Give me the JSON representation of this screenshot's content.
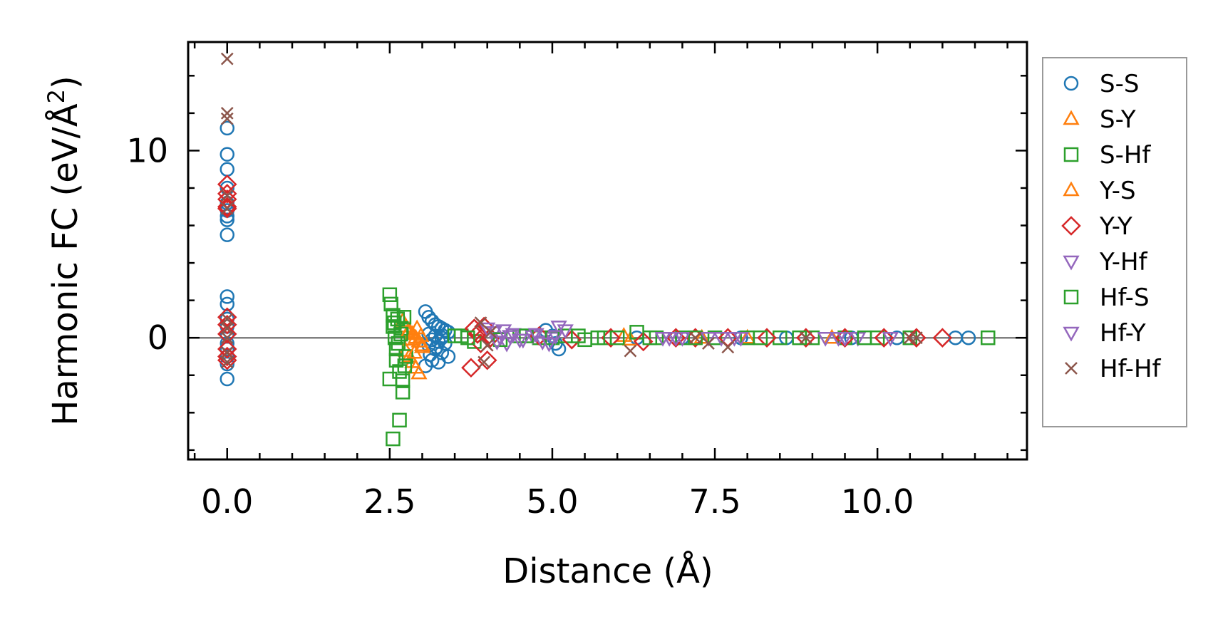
{
  "chart_data": {
    "type": "scatter",
    "title": "",
    "xlabel": "Distance (Å)",
    "ylabel_main": "Harmonic FC (eV/Å",
    "ylabel_sup": "2",
    "ylabel_close": ")",
    "xlim": [
      -0.6,
      12.3
    ],
    "ylim": [
      -6.5,
      15.8
    ],
    "x_ticks": [
      0.0,
      2.5,
      5.0,
      7.5,
      10.0
    ],
    "x_tick_labels": [
      "0.0",
      "2.5",
      "5.0",
      "7.5",
      "10.0"
    ],
    "y_ticks": [
      0,
      10
    ],
    "y_tick_labels": [
      "0",
      "10"
    ],
    "reference_line_y": 0,
    "legend_position": "outside-right",
    "series": [
      {
        "name": "S-S",
        "marker": "circle",
        "color": "#1f77b4",
        "x": [
          0,
          0,
          0,
          0,
          0,
          0,
          0,
          0,
          0,
          0,
          0,
          0,
          0,
          0,
          0,
          0,
          0,
          0,
          0,
          3.05,
          3.1,
          3.15,
          3.2,
          3.25,
          3.3,
          3.35,
          3.4,
          3.1,
          3.2,
          3.3,
          3.15,
          3.25,
          3.35,
          3.1,
          3.2,
          3.3,
          3.4,
          3.15,
          3.25,
          3.05,
          3.12,
          3.22,
          3.32,
          4.9,
          5.0,
          5.05,
          5.1,
          6.3,
          7.0,
          7.9,
          8.6,
          9.6,
          10.3,
          11.2,
          11.4
        ],
        "y": [
          11.2,
          9.8,
          9.0,
          8.0,
          7.2,
          6.8,
          6.5,
          6.3,
          5.5,
          2.2,
          1.8,
          1.0,
          0.6,
          0.2,
          -0.3,
          -0.6,
          -1.0,
          -1.4,
          -2.2,
          1.4,
          1.1,
          0.9,
          0.7,
          0.6,
          0.5,
          0.4,
          0.3,
          0.2,
          0.1,
          0.0,
          -0.1,
          -0.2,
          -0.3,
          -0.4,
          -0.6,
          -0.8,
          -1.0,
          -1.2,
          -1.3,
          -1.5,
          -0.9,
          -0.5,
          0.1,
          0.4,
          0.1,
          -0.3,
          -0.6,
          0.0,
          0.0,
          0.0,
          0.0,
          0.0,
          0.0,
          0.0,
          0.0
        ]
      },
      {
        "name": "S-Y",
        "marker": "triangle-up",
        "color": "#ff7f0e",
        "x": [
          2.7,
          2.75,
          2.8,
          2.85,
          2.9,
          2.95,
          3.0,
          2.75,
          2.8,
          2.85,
          2.9,
          2.95,
          3.0,
          6.1,
          6.2,
          7.3,
          8.0,
          9.3
        ],
        "y": [
          0.9,
          0.6,
          0.4,
          0.2,
          0.0,
          -0.2,
          -0.4,
          -0.7,
          -1.0,
          -1.3,
          -1.6,
          -1.9,
          -0.5,
          0.1,
          -0.1,
          0.0,
          0.0,
          0.0
        ]
      },
      {
        "name": "S-Hf",
        "marker": "square",
        "color": "#2ca02c",
        "x": [
          2.5,
          2.5,
          2.52,
          2.55,
          2.55,
          2.55,
          2.58,
          2.6,
          2.6,
          2.62,
          2.65,
          2.65,
          2.68,
          2.7,
          2.7,
          2.72,
          2.75,
          3.6,
          3.8,
          4.5,
          4.8,
          5.2,
          5.5,
          5.8,
          6.3,
          6.6,
          7.0,
          7.5,
          8.0,
          8.5,
          9.0,
          9.5,
          10.0,
          10.5,
          11.7
        ],
        "y": [
          2.3,
          -2.2,
          1.8,
          1.2,
          0.6,
          -5.4,
          0.0,
          -0.6,
          -1.2,
          1.0,
          -1.8,
          -4.4,
          0.5,
          -2.9,
          -2.3,
          1.1,
          -1.0,
          0.1,
          -0.2,
          0.1,
          0.0,
          0.1,
          -0.1,
          0.0,
          0.3,
          0.0,
          0.0,
          0.0,
          0.0,
          0.0,
          0.0,
          0.0,
          0.0,
          0.0,
          0.0
        ]
      },
      {
        "name": "Y-S",
        "marker": "triangle-up",
        "color": "#ff7f0e",
        "x": [
          2.78,
          2.82,
          2.88,
          2.92,
          2.98
        ],
        "y": [
          0.3,
          -0.1,
          -0.8,
          0.5,
          0.1
        ]
      },
      {
        "name": "Y-Y",
        "marker": "diamond",
        "color": "#d62728",
        "x": [
          0,
          0,
          0,
          0,
          0,
          0,
          0,
          0,
          0,
          0,
          0,
          3.75,
          3.8,
          3.85,
          3.9,
          3.95,
          4.0,
          4.05,
          4.8,
          5.3,
          5.9,
          6.4,
          6.9,
          7.2,
          7.7,
          8.3,
          8.9,
          9.5,
          10.1,
          10.6,
          11.0
        ],
        "y": [
          8.2,
          7.7,
          7.4,
          7.0,
          6.9,
          1.1,
          0.7,
          0.2,
          -0.6,
          -1.0,
          -1.2,
          -1.6,
          0.5,
          0.2,
          -0.3,
          0.6,
          -1.2,
          0.0,
          0.1,
          -0.1,
          0.0,
          -0.2,
          0.0,
          0.0,
          0.0,
          0.0,
          0.0,
          0.0,
          0.0,
          0.0,
          0.0
        ]
      },
      {
        "name": "Y-Hf",
        "marker": "triangle-down",
        "color": "#9467bd",
        "x": [
          4.0,
          4.1,
          4.2,
          4.3,
          4.4,
          4.5,
          4.7,
          4.85,
          5.0,
          5.1,
          5.2,
          6.8,
          6.9,
          7.6,
          7.9,
          9.4,
          9.7,
          10.2
        ],
        "y": [
          0.5,
          0.3,
          0.0,
          -0.3,
          0.2,
          -0.1,
          0.1,
          -0.2,
          0.0,
          0.6,
          0.4,
          0.0,
          0.0,
          0.0,
          0.0,
          0.0,
          0.0,
          0.0
        ]
      },
      {
        "name": "Hf-S",
        "marker": "square",
        "color": "#2ca02c",
        "x": [
          2.57,
          2.63,
          2.67,
          2.73,
          3.5,
          3.7,
          4.2,
          4.6,
          5.0,
          5.4,
          5.7,
          6.0,
          6.5,
          7.2,
          8.2,
          8.8,
          9.8
        ],
        "y": [
          0.8,
          -0.3,
          0.2,
          -1.5,
          0.1,
          0.0,
          -0.1,
          0.1,
          0.0,
          0.1,
          0.0,
          0.0,
          0.0,
          0.0,
          0.0,
          0.0,
          0.0
        ]
      },
      {
        "name": "Hf-Y",
        "marker": "triangle-down",
        "color": "#9467bd",
        "x": [
          4.15,
          4.25,
          4.35,
          4.55,
          4.75,
          4.95,
          5.05,
          6.7,
          7.0,
          7.4,
          7.8,
          9.2,
          9.5
        ],
        "y": [
          -0.2,
          0.4,
          0.1,
          -0.1,
          0.2,
          -0.3,
          0.1,
          0.0,
          0.0,
          0.0,
          0.0,
          0.0,
          0.0
        ]
      },
      {
        "name": "Hf-Hf",
        "marker": "x",
        "color": "#8c564b",
        "x": [
          0,
          0,
          0,
          0,
          0,
          0,
          0,
          0,
          0,
          0,
          3.9,
          3.95,
          4.0,
          4.05,
          6.2,
          7.2,
          7.4,
          7.7,
          8.9,
          10.5,
          10.6
        ],
        "y": [
          14.9,
          12.0,
          11.7,
          7.6,
          6.9,
          1.0,
          0.5,
          0.0,
          -0.8,
          -1.3,
          0.8,
          -1.3,
          -0.4,
          0.3,
          -0.7,
          0.0,
          -0.3,
          -0.5,
          0.0,
          0.0,
          0.0
        ]
      }
    ]
  }
}
